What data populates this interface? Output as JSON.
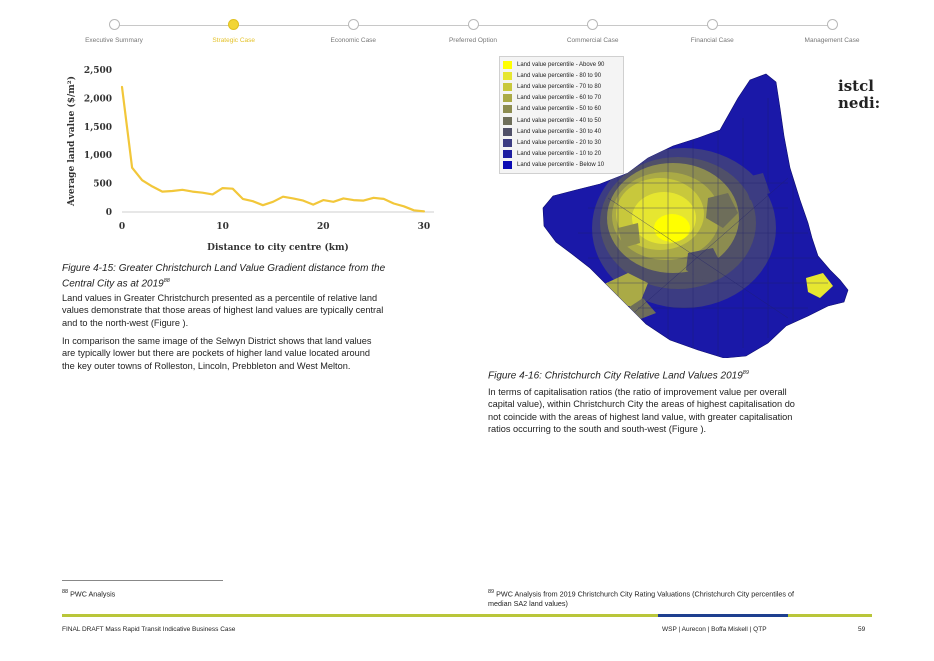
{
  "nav": {
    "steps": [
      "Executive Summary",
      "Strategic Case",
      "Economic Case",
      "Preferred Option",
      "Commercial Case",
      "Financial Case",
      "Management Case"
    ],
    "active_index": 1
  },
  "figure_15": {
    "caption_line1": "Figure 4-15: Greater Christchurch Land Value Gradient distance from the",
    "caption_line2": "Central City as at 2019",
    "caption_ref": "88"
  },
  "chart_data": {
    "type": "line",
    "xlabel": "Distance to city centre (km)",
    "ylabel": "Average land value ($/m²)",
    "xlim": [
      0,
      31
    ],
    "ylim": [
      0,
      2500
    ],
    "x_ticks": [
      "0",
      "10",
      "20",
      "30"
    ],
    "y_ticks": [
      "0",
      "500",
      "1,000",
      "1,500",
      "2,000",
      "2,500"
    ],
    "grid": false,
    "series": [
      {
        "x": [
          0,
          1,
          2,
          3,
          4,
          5,
          6,
          7,
          8,
          9,
          10,
          11,
          12,
          13,
          14,
          15,
          16,
          17,
          18,
          19,
          20,
          21,
          22,
          23,
          24,
          25,
          26,
          27,
          28,
          29,
          30
        ],
        "y": [
          2200,
          780,
          560,
          450,
          360,
          370,
          390,
          360,
          340,
          310,
          420,
          410,
          230,
          190,
          120,
          180,
          270,
          240,
          200,
          130,
          210,
          180,
          240,
          210,
          200,
          250,
          230,
          150,
          100,
          30,
          10
        ],
        "color": "#f2c73a"
      }
    ]
  },
  "left_text": {
    "p1": [
      "Land values in Greater Christchurch presented as a percentile of relative land",
      "values demonstrate that those areas of highest land values are typically central",
      "and to the north-west (Figure )."
    ],
    "p2": [
      "In comparison the same image of the Selwyn District shows that land values",
      "are typically lower but there are pockets of higher land value located around",
      "the key outer towns of Rolleston, Lincoln, Prebbleton and West Melton."
    ]
  },
  "legend": {
    "items": [
      {
        "label": "Land value percentile - Above 90",
        "color": "#ffff00"
      },
      {
        "label": "Land value percentile - 80 to 90",
        "color": "#e6e630"
      },
      {
        "label": "Land value percentile - 70 to 80",
        "color": "#c8c83c"
      },
      {
        "label": "Land value percentile - 60 to 70",
        "color": "#aaaa46"
      },
      {
        "label": "Land value percentile - 50 to 60",
        "color": "#8c8c50"
      },
      {
        "label": "Land value percentile - 40 to 50",
        "color": "#6e6e5a"
      },
      {
        "label": "Land value percentile - 30 to 40",
        "color": "#505068"
      },
      {
        "label": "Land value percentile - 20 to 30",
        "color": "#3c3c82"
      },
      {
        "label": "Land value percentile - 10 to 20",
        "color": "#1e1ea0"
      },
      {
        "label": "Land value percentile - Below 10",
        "color": "#0a0ab4"
      }
    ]
  },
  "map_text": {
    "line1": "istcl",
    "line2": "nedi:"
  },
  "figure_16": {
    "caption": "Figure 4-16: Christchurch City Relative Land Values 2019",
    "caption_ref": "89"
  },
  "right_text": {
    "p1": [
      "In terms of capitalisation ratios (the ratio of improvement value per overall",
      "capital value), within Christchurch City the areas of highest capitalisation do",
      "not coincide with the areas of highest land value, with greater capitalisation",
      "ratios occurring to the south and south-west (Figure )."
    ]
  },
  "footnotes": {
    "left_ref": "88",
    "left": "PWC Analysis",
    "right_ref": "89",
    "right_line1": "PWC Analysis from 2019 Christchurch City Rating Valuations (Christchurch City percentiles of",
    "right_line2": "median SA2 land values)"
  },
  "footer": {
    "left": "FINAL DRAFT Mass Rapid Transit Indicative Business Case",
    "partners": "WSP | Aurecon | Boffa Miskell | QTP",
    "page": "59",
    "bar_colors": [
      "#b9c63a",
      "#1e3f8f",
      "#b9c63a"
    ]
  }
}
